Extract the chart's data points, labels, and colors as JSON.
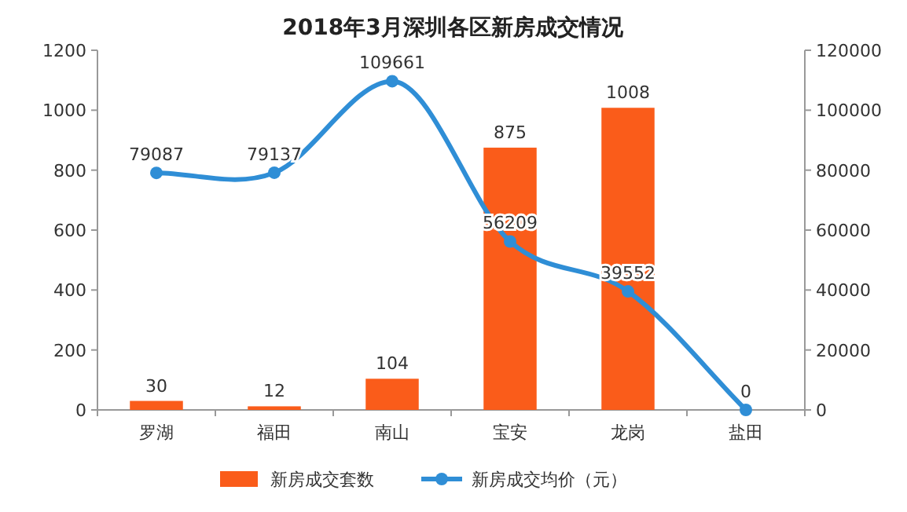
{
  "chart_data": {
    "type": "bar",
    "title": "2018年3月深圳各区新房成交情况",
    "categories": [
      "罗湖",
      "福田",
      "南山",
      "宝安",
      "龙岗",
      "盐田"
    ],
    "series": [
      {
        "name": "新房成交套数",
        "color": "#fa5c1a",
        "values": [
          30,
          12,
          104,
          875,
          1008,
          0
        ],
        "value_labels": [
          "30",
          "12",
          "104",
          "875",
          "1008",
          null
        ]
      },
      {
        "name": "新房成交均价（元）",
        "type": "line",
        "axis": "y2",
        "color": "#2f8ed6",
        "marker": "circle",
        "values": [
          79087,
          79137,
          109661,
          56209,
          39552,
          0
        ],
        "value_labels": [
          "79087",
          "79137",
          "109661",
          "56209",
          "39552",
          "0"
        ]
      }
    ],
    "ylim": [
      0,
      1200
    ],
    "yticks": [
      0,
      200,
      400,
      600,
      800,
      1000,
      1200
    ],
    "y2lim": [
      0,
      120000
    ],
    "y2ticks": [
      0,
      20000,
      40000,
      60000,
      80000,
      100000,
      120000
    ],
    "grid": false,
    "legend": "bottom"
  }
}
